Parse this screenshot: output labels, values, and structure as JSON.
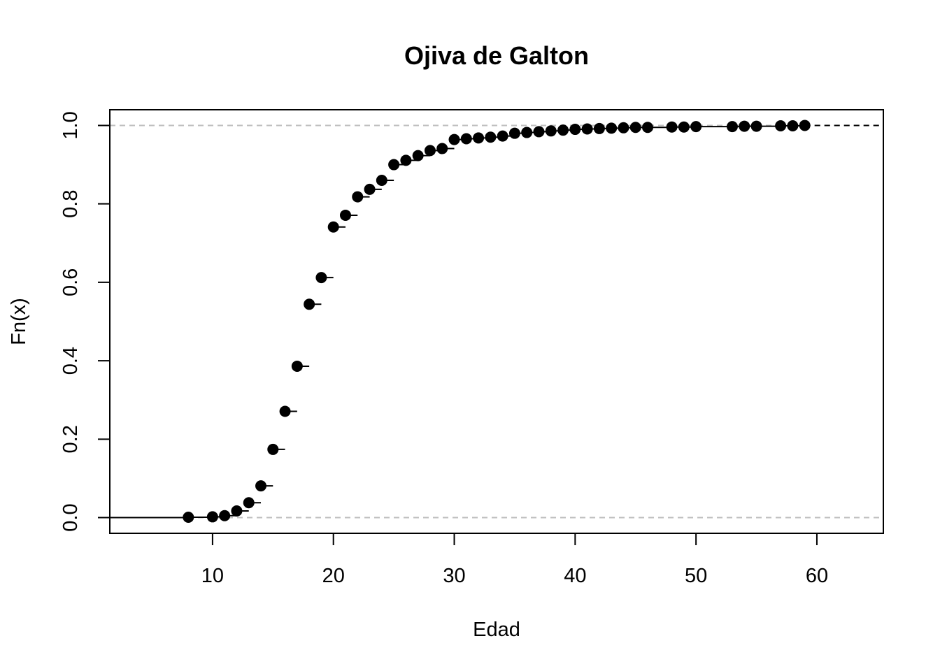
{
  "chart_data": {
    "type": "scatter",
    "subtype": "ecdf-step",
    "title": "Ojiva de Galton",
    "xlabel": "Edad",
    "ylabel": "Fn(x)",
    "xlim": [
      1.5,
      65.5
    ],
    "ylim": [
      -0.04,
      1.04
    ],
    "x_ticks": [
      10,
      20,
      30,
      40,
      50,
      60
    ],
    "x_tick_labels": [
      "10",
      "20",
      "30",
      "40",
      "50",
      "60"
    ],
    "y_ticks": [
      0.0,
      0.2,
      0.4,
      0.6,
      0.8,
      1.0
    ],
    "y_tick_labels": [
      "0.0",
      "0.2",
      "0.4",
      "0.6",
      "0.8",
      "1.0"
    ],
    "reference_lines": [
      0.0,
      1.0
    ],
    "grid": false,
    "legend": "none",
    "point_color": "#000000",
    "reference_line_color": "#bebebe",
    "x": [
      8,
      10,
      11,
      12,
      13,
      14,
      15,
      16,
      17,
      18,
      19,
      20,
      21,
      22,
      23,
      24,
      25,
      26,
      27,
      28,
      29,
      30,
      31,
      32,
      33,
      34,
      35,
      36,
      37,
      38,
      39,
      40,
      41,
      42,
      43,
      44,
      45,
      46,
      48,
      49,
      50,
      53,
      54,
      55,
      57,
      58,
      59
    ],
    "y": [
      0.001,
      0.002,
      0.005,
      0.017,
      0.038,
      0.081,
      0.174,
      0.271,
      0.386,
      0.544,
      0.612,
      0.741,
      0.771,
      0.818,
      0.837,
      0.86,
      0.9,
      0.911,
      0.923,
      0.936,
      0.941,
      0.964,
      0.966,
      0.968,
      0.97,
      0.973,
      0.98,
      0.982,
      0.984,
      0.986,
      0.988,
      0.99,
      0.991,
      0.992,
      0.993,
      0.994,
      0.995,
      0.995,
      0.996,
      0.996,
      0.997,
      0.997,
      0.998,
      0.998,
      0.999,
      0.999,
      1.0
    ]
  }
}
